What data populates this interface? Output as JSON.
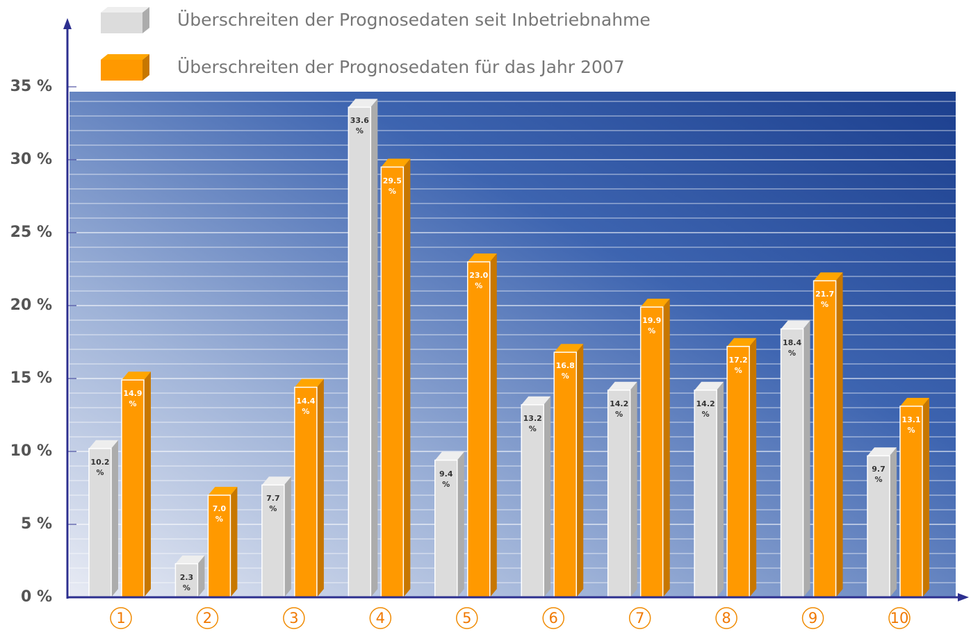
{
  "chart_data": {
    "type": "bar3d",
    "categories": [
      "1",
      "2",
      "3",
      "4",
      "5",
      "6",
      "7",
      "8",
      "9",
      "10"
    ],
    "series": [
      {
        "name": "Überschreiten der Prognosedaten seit Inbetriebnahme",
        "color": "#dcdcdc",
        "values": [
          10.2,
          2.3,
          7.7,
          33.6,
          9.4,
          13.2,
          14.2,
          14.2,
          18.4,
          9.7
        ],
        "value_labels": [
          "10.2 %",
          "2.3 %",
          "7.7 %",
          "33.6 %",
          "9.4 %",
          "13.2 %",
          "14.2 %",
          "14.2 %",
          "18.4 %",
          "9.7 %"
        ]
      },
      {
        "name": "Überschreiten der Prognosedaten für das Jahr 2007",
        "color": "#ff9900",
        "values": [
          14.9,
          7.0,
          14.4,
          29.5,
          23.0,
          16.8,
          19.9,
          17.2,
          21.7,
          13.1
        ],
        "value_labels": [
          "14.9 %",
          "7.0 %",
          "14.4 %",
          "29.5 %",
          "23.0 %",
          "16.8 %",
          "19.9 %",
          "17.2 %",
          "21.7 %",
          "13.1 %"
        ]
      }
    ],
    "ylim": [
      0,
      35
    ],
    "yticks": [
      {
        "value": 0,
        "label": "0 %"
      },
      {
        "value": 5,
        "label": "5 %"
      },
      {
        "value": 10,
        "label": "10 %"
      },
      {
        "value": 15,
        "label": "15 %"
      },
      {
        "value": 20,
        "label": "20 %"
      },
      {
        "value": 25,
        "label": "25 %"
      },
      {
        "value": 30,
        "label": "30 %"
      },
      {
        "value": 35,
        "label": "35 %"
      }
    ],
    "grid": true
  }
}
